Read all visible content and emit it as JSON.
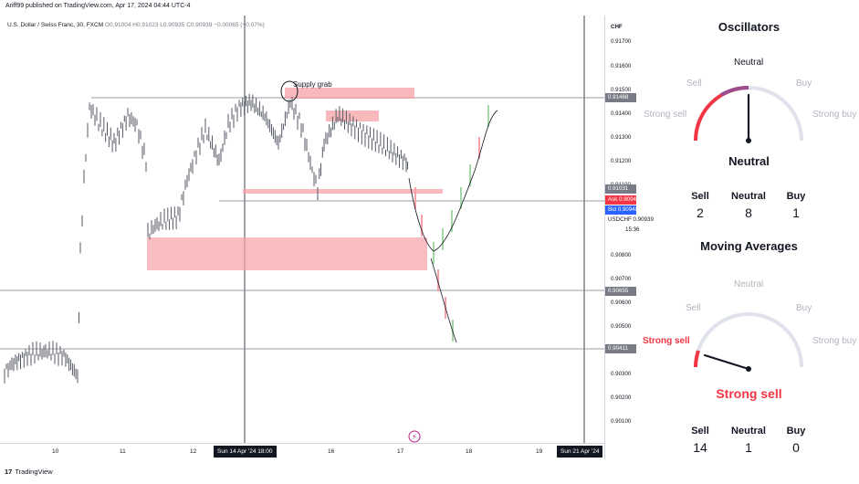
{
  "attribution": "Ariff99 published on TradingView.com, Apr 17, 2024 04:44 UTC-4",
  "symbol": {
    "name": "U.S. Dollar / Swiss Franc, 30, FXCM",
    "ohlc": "O0.91004 H0.91023 L0.90935 C0.90939 −0.00065 (−0.07%)"
  },
  "price_axis": {
    "currency": "CHF",
    "ticks": [
      "0.91700",
      "0.91600",
      "0.91500",
      "0.91400",
      "0.91300",
      "0.91200",
      "0.91100",
      "0.90800",
      "0.90700",
      "0.90600",
      "0.90500",
      "0.90300",
      "0.90200",
      "0.90100"
    ],
    "labels": {
      "l1": "0.91468",
      "l2": "0.91031",
      "ask_label": "Ask",
      "ask": "0.90943",
      "bid_label": "Bid",
      "bid": "0.90940",
      "symbol": "USDCHF",
      "last": "0.90939",
      "countdown": "15:36",
      "l3": "0.90655",
      "l4": "0.90411"
    }
  },
  "time_axis": {
    "ticks": [
      "10",
      "11",
      "12",
      "16",
      "17",
      "18",
      "19"
    ],
    "crosshair_label": "Sun 14 Apr '24   18:00",
    "session_label": "Sun 21 Apr '24"
  },
  "annotations": {
    "supply_grab": "Supply grab"
  },
  "footer": {
    "logo": "TradingView"
  },
  "colors": {
    "zone_fill": "#f7a1a6",
    "gray_line": "#787b86",
    "candle": "#555a66",
    "gauge_red": "#f23645",
    "gauge_purple": "#9c4d8f",
    "gauge_gray": "#e0e3eb"
  },
  "oscillators": {
    "title": "Oscillators",
    "labels": {
      "neutral": "Neutral",
      "sell": "Sell",
      "buy": "Buy",
      "strong_sell": "Strong sell",
      "strong_buy": "Strong buy"
    },
    "result": "Neutral",
    "needle_level": 0.5,
    "counts": {
      "sell_label": "Sell",
      "sell": "2",
      "neutral_label": "Neutral",
      "neutral": "8",
      "buy_label": "Buy",
      "buy": "1"
    }
  },
  "moving_averages": {
    "title": "Moving Averages",
    "labels": {
      "neutral": "Neutral",
      "sell": "Sell",
      "buy": "Buy",
      "strong_sell": "Strong sell",
      "strong_buy": "Strong buy"
    },
    "result": "Strong sell",
    "needle_level": 0.08,
    "counts": {
      "sell_label": "Sell",
      "sell": "14",
      "neutral_label": "Neutral",
      "neutral": "1",
      "buy_label": "Buy",
      "buy": "0"
    }
  }
}
